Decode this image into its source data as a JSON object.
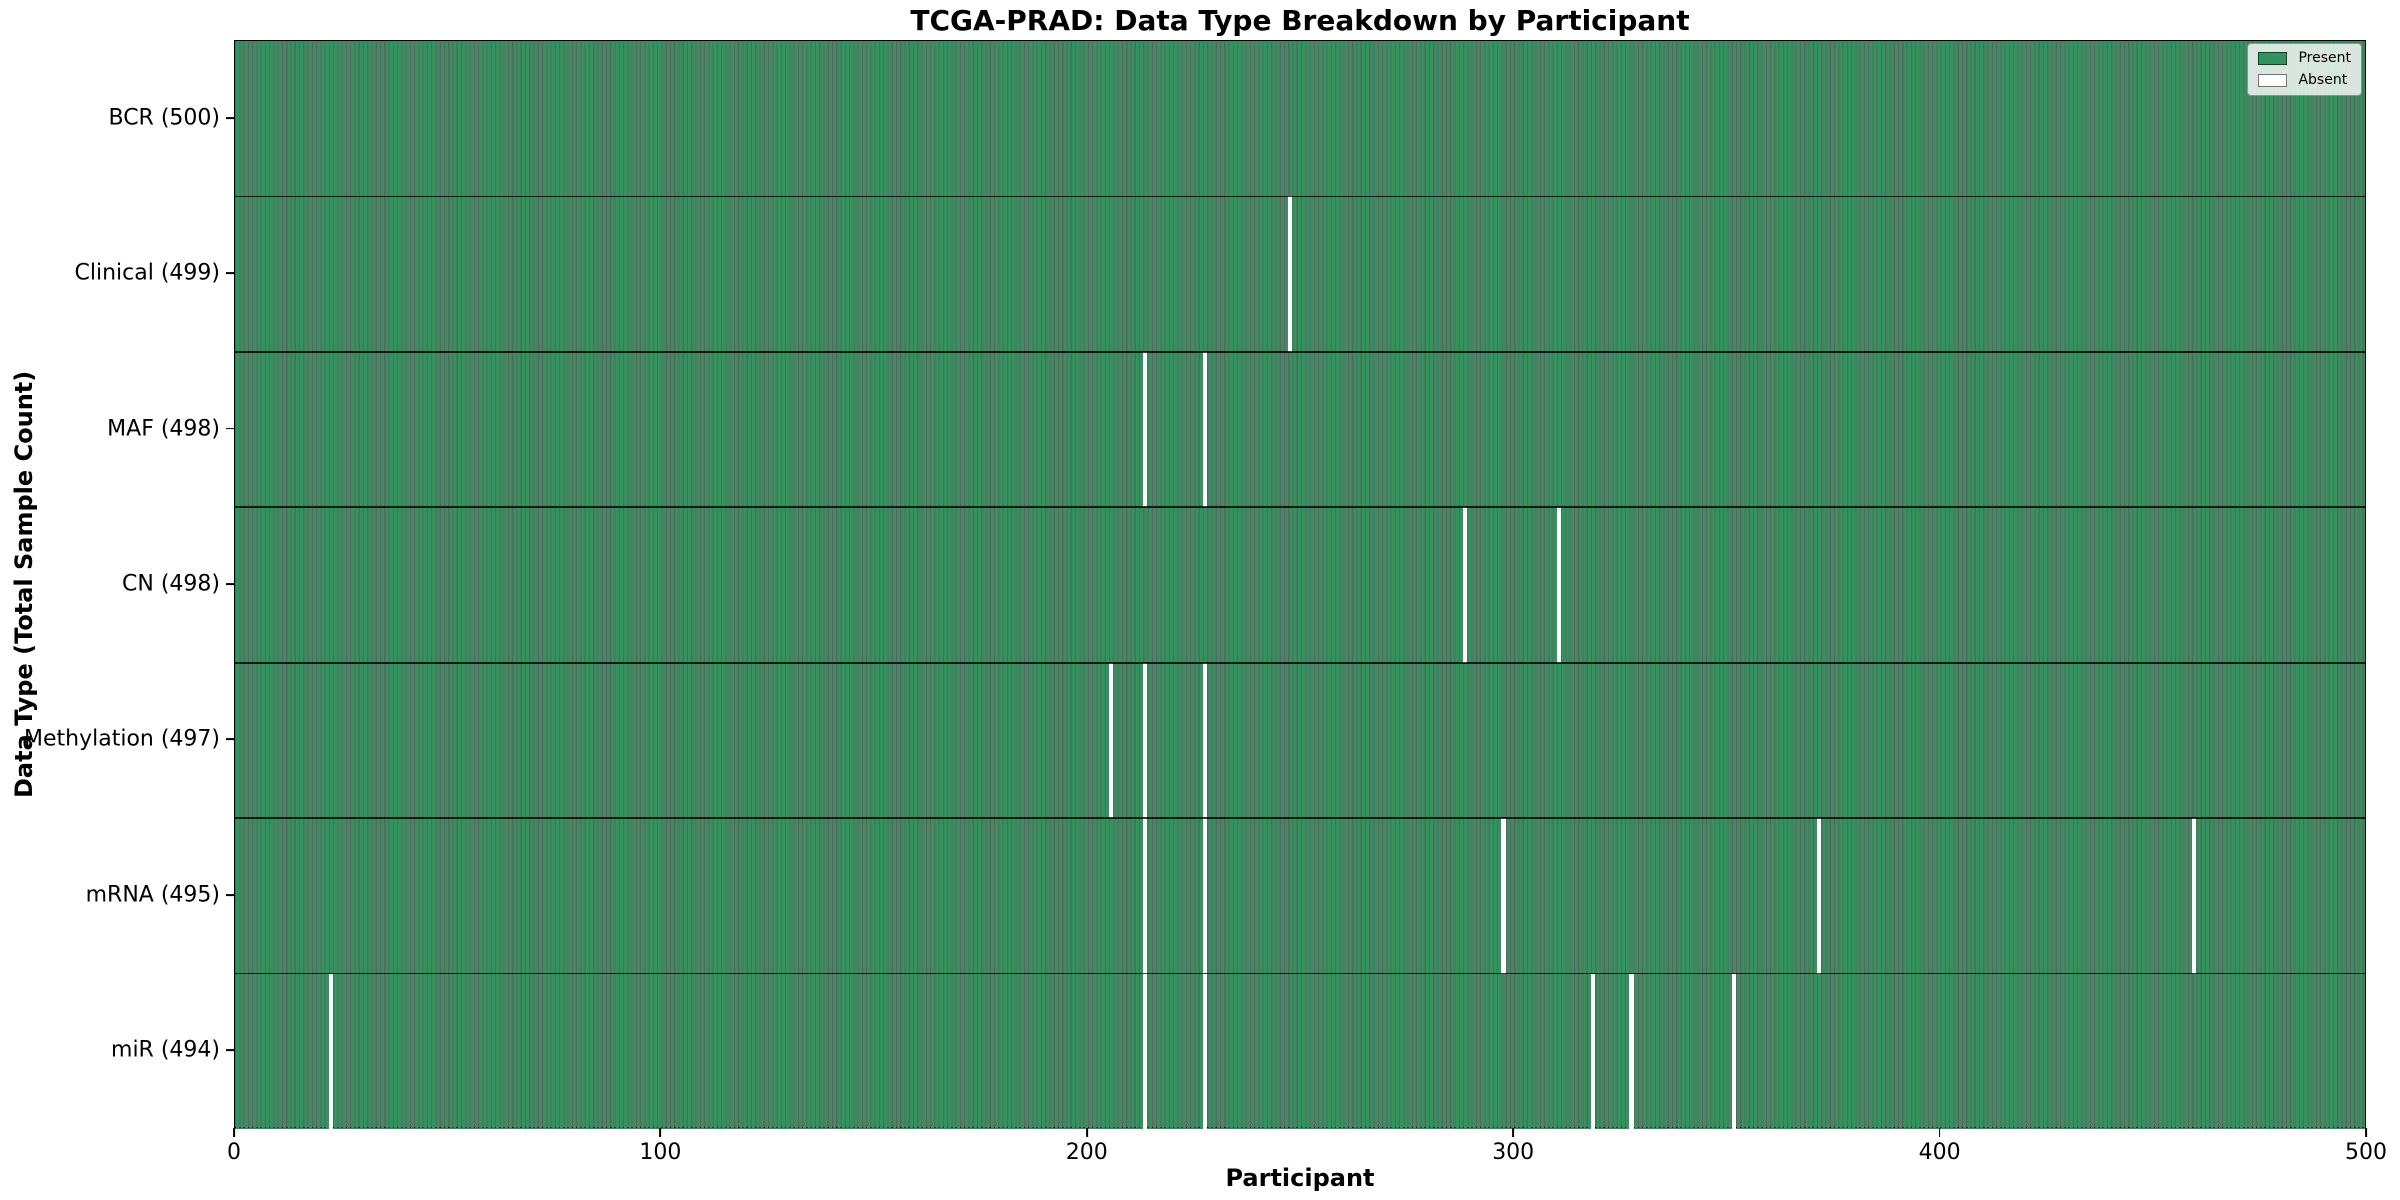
{
  "chart_data": {
    "type": "heatmap",
    "title": "TCGA-PRAD: Data Type Breakdown by Participant",
    "xlabel": "Participant",
    "ylabel": "Data Type (Total Sample Count)",
    "x_ticks": [
      0,
      100,
      200,
      300,
      400,
      500
    ],
    "x_range": [
      0,
      500
    ],
    "n_participants": 500,
    "grid": false,
    "legend_position": "upper right",
    "legend": [
      {
        "label": "Present",
        "color": "#33925e"
      },
      {
        "label": "Absent",
        "color": "#ffffff"
      }
    ],
    "colors": {
      "present": "#33925e",
      "cell_edge": "rgba(0,0,0,0.62)",
      "absent": "#ffffff",
      "row_divider": "rgba(0,0,0,0.78)"
    },
    "rows": [
      {
        "label": "BCR (500)",
        "total": 500,
        "absent_participants": []
      },
      {
        "label": "Clinical (499)",
        "total": 499,
        "absent_participants": [
          247
        ]
      },
      {
        "label": "MAF (498)",
        "total": 498,
        "absent_participants": [
          213,
          227
        ]
      },
      {
        "label": "CN (498)",
        "total": 498,
        "absent_participants": [
          288,
          310
        ]
      },
      {
        "label": "Methylation (497)",
        "total": 497,
        "absent_participants": [
          205,
          213,
          227
        ]
      },
      {
        "label": "mRNA (495)",
        "total": 495,
        "absent_participants": [
          213,
          227,
          297,
          371,
          459
        ]
      },
      {
        "label": "miR (494)",
        "total": 494,
        "absent_participants": [
          22,
          213,
          227,
          318,
          327,
          351
        ]
      }
    ]
  }
}
